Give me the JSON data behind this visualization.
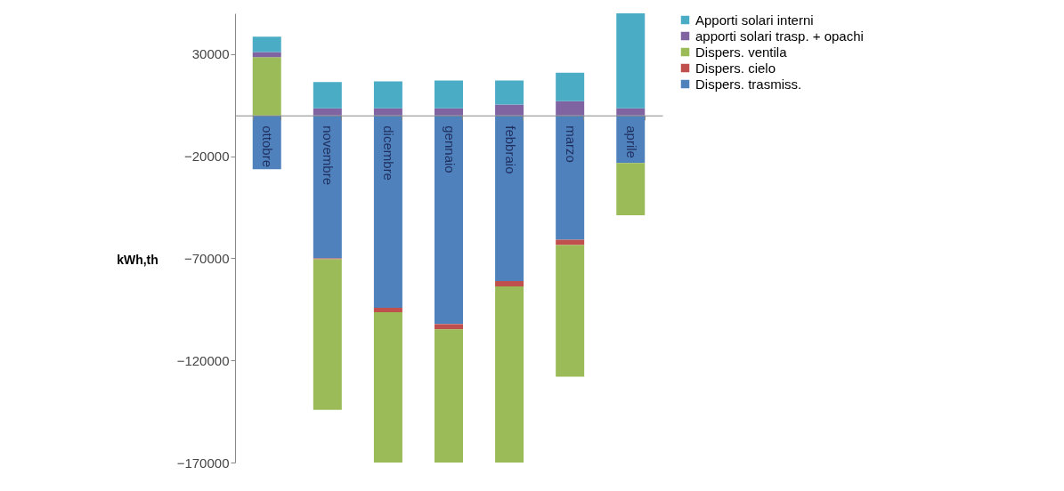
{
  "chart_data": {
    "type": "bar",
    "stacked": true,
    "ylabel": "kWh,th",
    "categories": [
      "ottobre",
      "novembre",
      "dicembre",
      "gennaio",
      "febbraio",
      "marzo",
      "aprile"
    ],
    "series": [
      {
        "name": "Dispers. trasmiss.",
        "color": "#4f81bd",
        "values": [
          -26400,
          -70000,
          -94200,
          -102200,
          -81100,
          -60900,
          -23300
        ]
      },
      {
        "name": "Dispers. cielo",
        "color": "#c0504d",
        "values": [
          0,
          -500,
          -2200,
          -2600,
          -2600,
          -2600,
          0
        ]
      },
      {
        "name": "Dispers. ventila",
        "color": "#9bbb59",
        "values": [
          28500,
          -73700,
          -73600,
          -65200,
          -86300,
          -64500,
          -25600
        ]
      },
      {
        "name": "apporti solari trasp. + opachi",
        "color": "#8064a2",
        "values": [
          2500,
          3500,
          3500,
          3500,
          5400,
          7000,
          3500
        ]
      },
      {
        "name": "Apporti solari interni",
        "color": "#4bacc6",
        "values": [
          7600,
          12900,
          13200,
          13600,
          11700,
          13900,
          46500
        ]
      }
    ],
    "ylim": [
      -170000,
      50000
    ],
    "yticks": [
      30000,
      -20000,
      -70000,
      -120000,
      -170000
    ],
    "grid": false,
    "legend": "right"
  }
}
